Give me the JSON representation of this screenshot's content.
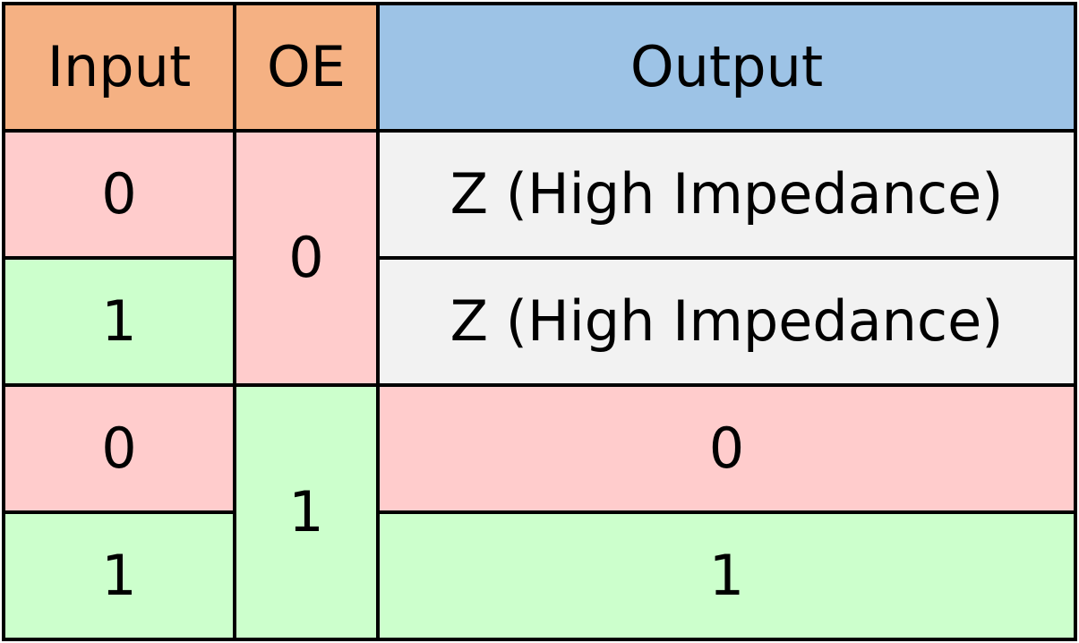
{
  "colors": {
    "input_header": "#F5B183",
    "oe_header": "#F5B183",
    "output_header": "#9DC3E6",
    "zero_fill": "#FFCCCC",
    "one_fill": "#CCFFCC",
    "hiz_fill": "#F2F2F2",
    "border": "#000000"
  },
  "headers": {
    "input": "Input",
    "oe": "OE",
    "output": "Output"
  },
  "rows": [
    {
      "input": "0",
      "output": "Z (High Impedance)"
    },
    {
      "input": "1",
      "output": "Z (High Impedance)"
    },
    {
      "input": "0",
      "output": "0"
    },
    {
      "input": "1",
      "output": "1"
    }
  ],
  "oe_groups": [
    "0",
    "1"
  ]
}
